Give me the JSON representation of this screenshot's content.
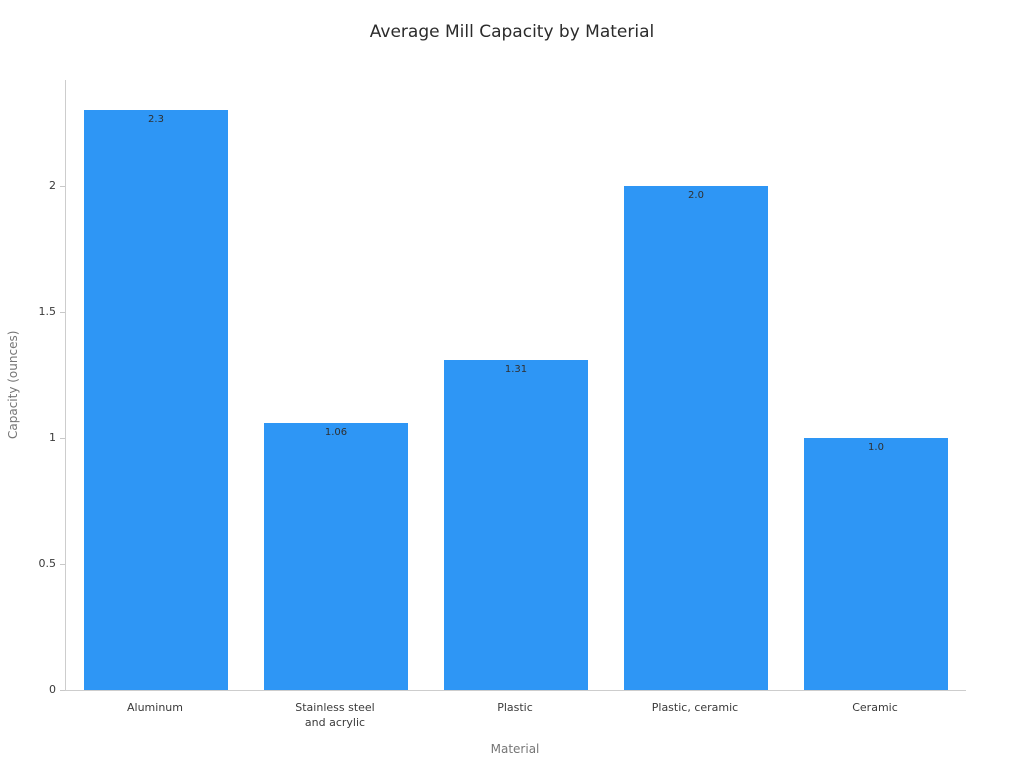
{
  "chart_data": {
    "type": "bar",
    "title": "Average Mill Capacity by Material",
    "xlabel": "Material",
    "ylabel": "Capacity (ounces)",
    "categories": [
      "Aluminum",
      "Stainless steel\nand acrylic",
      "Plastic",
      "Plastic, ceramic",
      "Ceramic"
    ],
    "values": [
      2.3,
      1.06,
      1.31,
      2.0,
      1.0
    ],
    "value_labels": [
      "2.3",
      "1.06",
      "1.31",
      "2.0",
      "1.0"
    ],
    "yticks": [
      0,
      0.5,
      1,
      1.5,
      2
    ],
    "ytick_labels": [
      "0",
      "0.5",
      "1",
      "1.5",
      "2"
    ],
    "ylim": [
      0,
      2.42
    ],
    "bar_color": "#2e96f5",
    "grid": false,
    "legend_position": "none"
  }
}
